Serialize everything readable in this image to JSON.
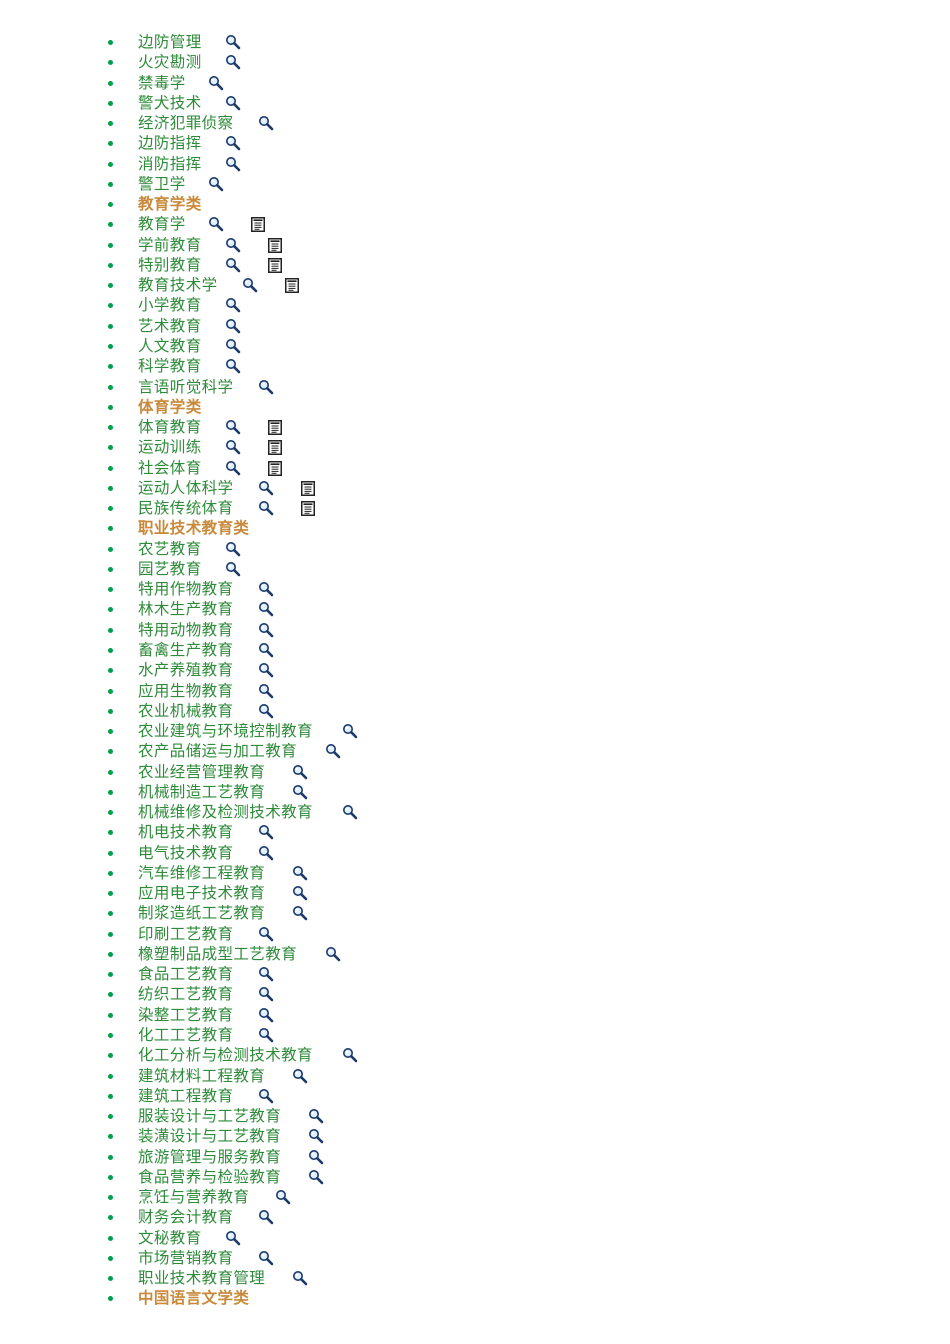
{
  "entries": [
    {
      "type": "major",
      "label": "边防管理",
      "search": true,
      "doc": false
    },
    {
      "type": "major",
      "label": "火灾勘测",
      "search": true,
      "doc": false
    },
    {
      "type": "major",
      "label": "禁毒学",
      "search": true,
      "doc": false
    },
    {
      "type": "major",
      "label": "警犬技术",
      "search": true,
      "doc": false
    },
    {
      "type": "major",
      "label": "经济犯罪侦察",
      "search": true,
      "doc": false
    },
    {
      "type": "major",
      "label": "边防指挥",
      "search": true,
      "doc": false
    },
    {
      "type": "major",
      "label": "消防指挥",
      "search": true,
      "doc": false
    },
    {
      "type": "major",
      "label": "警卫学",
      "search": true,
      "doc": false
    },
    {
      "type": "category",
      "label": "教育学类",
      "search": false,
      "doc": false
    },
    {
      "type": "major",
      "label": "教育学",
      "search": true,
      "doc": true
    },
    {
      "type": "major",
      "label": "学前教育",
      "search": true,
      "doc": true
    },
    {
      "type": "major",
      "label": "特别教育",
      "search": true,
      "doc": true
    },
    {
      "type": "major",
      "label": "教育技术学",
      "search": true,
      "doc": true
    },
    {
      "type": "major",
      "label": "小学教育",
      "search": true,
      "doc": false
    },
    {
      "type": "major",
      "label": "艺术教育",
      "search": true,
      "doc": false
    },
    {
      "type": "major",
      "label": "人文教育",
      "search": true,
      "doc": false
    },
    {
      "type": "major",
      "label": "科学教育",
      "search": true,
      "doc": false
    },
    {
      "type": "major",
      "label": "言语听觉科学",
      "search": true,
      "doc": false
    },
    {
      "type": "category",
      "label": "体育学类",
      "search": false,
      "doc": false
    },
    {
      "type": "major",
      "label": "体育教育",
      "search": true,
      "doc": true
    },
    {
      "type": "major",
      "label": "运动训练",
      "search": true,
      "doc": true
    },
    {
      "type": "major",
      "label": "社会体育",
      "search": true,
      "doc": true
    },
    {
      "type": "major",
      "label": "运动人体科学",
      "search": true,
      "doc": true
    },
    {
      "type": "major",
      "label": "民族传统体育",
      "search": true,
      "doc": true
    },
    {
      "type": "category",
      "label": "职业技术教育类",
      "search": false,
      "doc": false
    },
    {
      "type": "major",
      "label": "农艺教育",
      "search": true,
      "doc": false
    },
    {
      "type": "major",
      "label": "园艺教育",
      "search": true,
      "doc": false
    },
    {
      "type": "major",
      "label": "特用作物教育",
      "search": true,
      "doc": false
    },
    {
      "type": "major",
      "label": "林木生产教育",
      "search": true,
      "doc": false
    },
    {
      "type": "major",
      "label": "特用动物教育",
      "search": true,
      "doc": false
    },
    {
      "type": "major",
      "label": "畜禽生产教育",
      "search": true,
      "doc": false
    },
    {
      "type": "major",
      "label": "水产养殖教育",
      "search": true,
      "doc": false
    },
    {
      "type": "major",
      "label": "应用生物教育",
      "search": true,
      "doc": false
    },
    {
      "type": "major",
      "label": "农业机械教育",
      "search": true,
      "doc": false
    },
    {
      "type": "major",
      "label": "农业建筑与环境控制教育",
      "search": true,
      "doc": false
    },
    {
      "type": "major",
      "label": "农产品储运与加工教育",
      "search": true,
      "doc": false
    },
    {
      "type": "major",
      "label": "农业经营管理教育",
      "search": true,
      "doc": false
    },
    {
      "type": "major",
      "label": "机械制造工艺教育",
      "search": true,
      "doc": false
    },
    {
      "type": "major",
      "label": "机械维修及检测技术教育",
      "search": true,
      "doc": false
    },
    {
      "type": "major",
      "label": "机电技术教育",
      "search": true,
      "doc": false
    },
    {
      "type": "major",
      "label": "电气技术教育",
      "search": true,
      "doc": false
    },
    {
      "type": "major",
      "label": "汽车维修工程教育",
      "search": true,
      "doc": false
    },
    {
      "type": "major",
      "label": "应用电子技术教育",
      "search": true,
      "doc": false
    },
    {
      "type": "major",
      "label": "制浆造纸工艺教育",
      "search": true,
      "doc": false
    },
    {
      "type": "major",
      "label": "印刷工艺教育",
      "search": true,
      "doc": false
    },
    {
      "type": "major",
      "label": "橡塑制品成型工艺教育",
      "search": true,
      "doc": false
    },
    {
      "type": "major",
      "label": "食品工艺教育",
      "search": true,
      "doc": false
    },
    {
      "type": "major",
      "label": "纺织工艺教育",
      "search": true,
      "doc": false
    },
    {
      "type": "major",
      "label": "染整工艺教育",
      "search": true,
      "doc": false
    },
    {
      "type": "major",
      "label": "化工工艺教育",
      "search": true,
      "doc": false
    },
    {
      "type": "major",
      "label": "化工分析与检测技术教育",
      "search": true,
      "doc": false
    },
    {
      "type": "major",
      "label": "建筑材料工程教育",
      "search": true,
      "doc": false
    },
    {
      "type": "major",
      "label": "建筑工程教育",
      "search": true,
      "doc": false
    },
    {
      "type": "major",
      "label": "服装设计与工艺教育",
      "search": true,
      "doc": false
    },
    {
      "type": "major",
      "label": "装潢设计与工艺教育",
      "search": true,
      "doc": false
    },
    {
      "type": "major",
      "label": "旅游管理与服务教育",
      "search": true,
      "doc": false
    },
    {
      "type": "major",
      "label": "食品营养与检验教育",
      "search": true,
      "doc": false
    },
    {
      "type": "major",
      "label": "烹饪与营养教育",
      "search": true,
      "doc": false
    },
    {
      "type": "major",
      "label": "财务会计教育",
      "search": true,
      "doc": false
    },
    {
      "type": "major",
      "label": "文秘教育",
      "search": true,
      "doc": false
    },
    {
      "type": "major",
      "label": "市场营销教育",
      "search": true,
      "doc": false
    },
    {
      "type": "major",
      "label": "职业技术教育管理",
      "search": true,
      "doc": false
    },
    {
      "type": "category",
      "label": "中国语言文学类",
      "search": false,
      "doc": false
    }
  ],
  "colors": {
    "major_text": "#2e8b3a",
    "category_text": "#c8893a",
    "bullet": "#00a04a"
  },
  "icons": {
    "search": "magnifier-icon",
    "doc": "document-icon"
  }
}
